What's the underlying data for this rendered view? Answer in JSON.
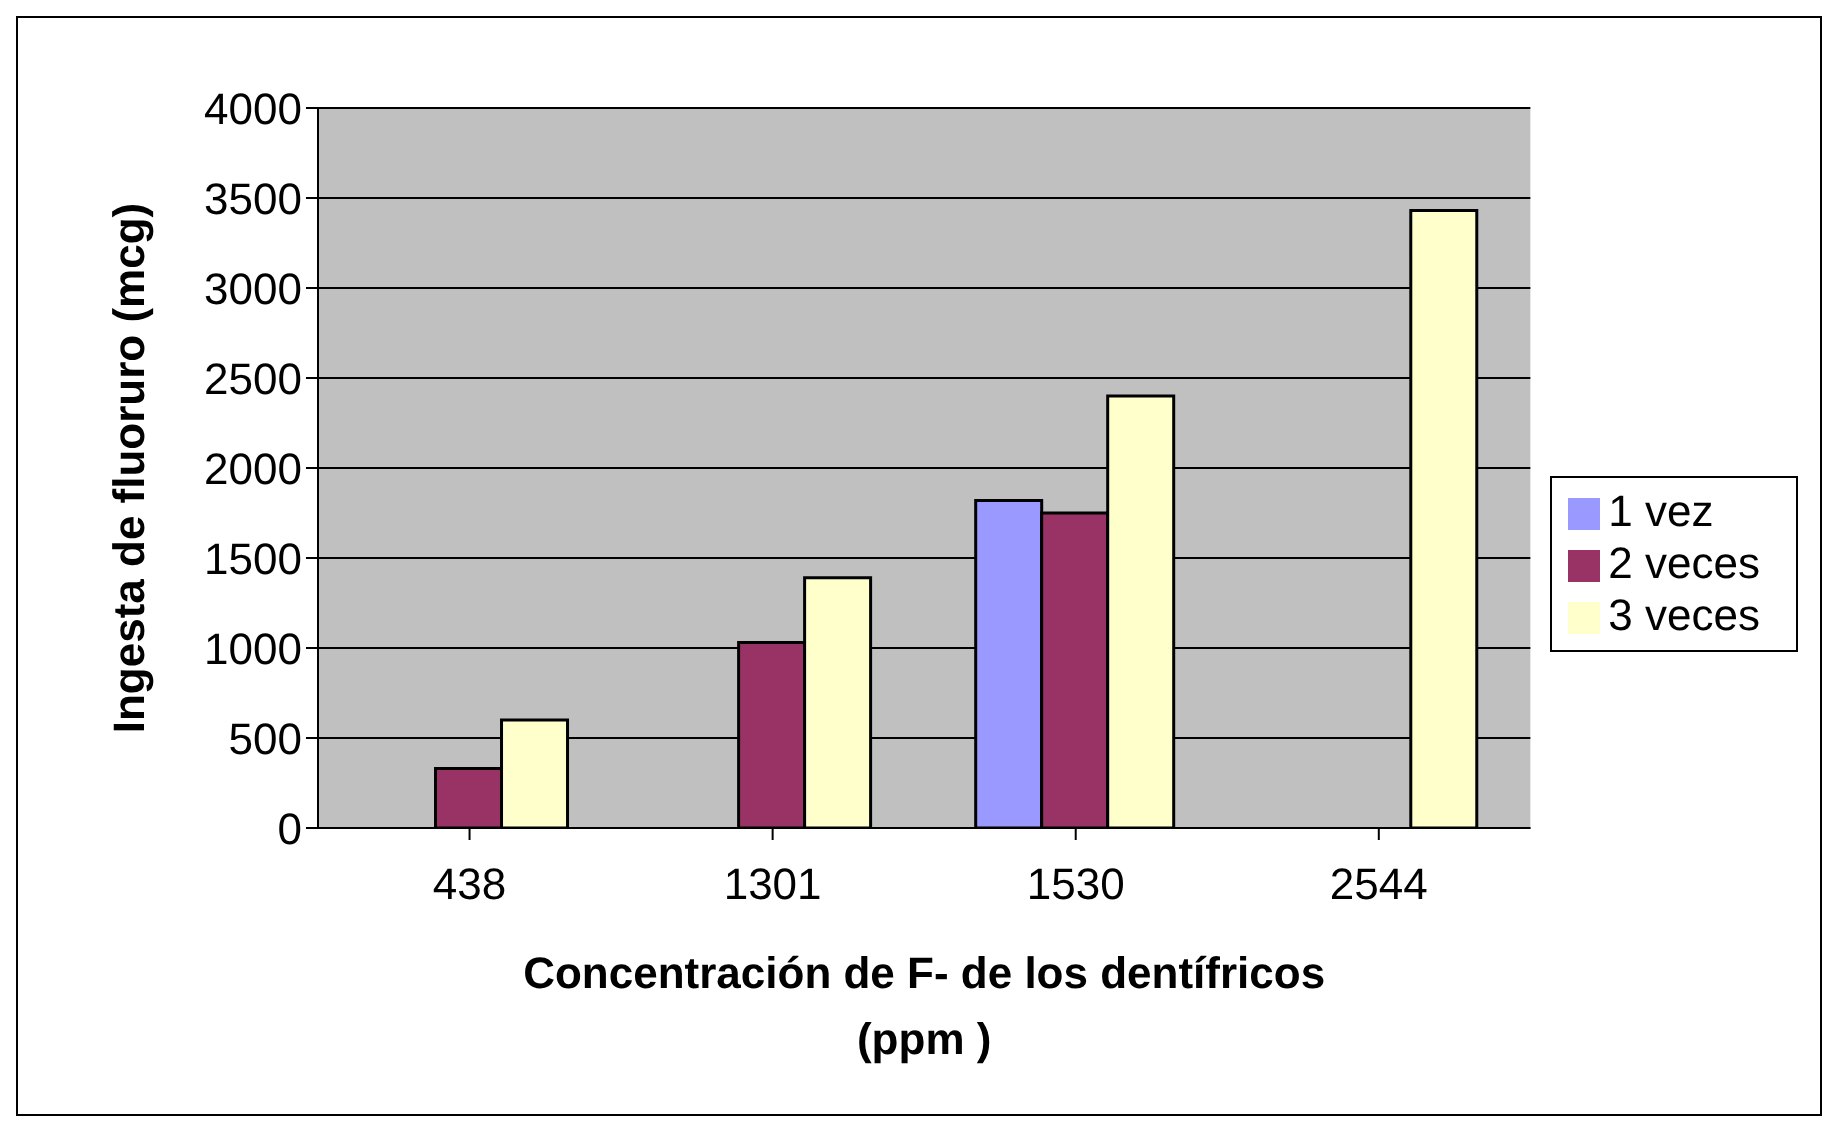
{
  "chart_data": {
    "type": "bar",
    "xlabel": "Concentración de F- de los dentífricos (ppm )",
    "ylabel": "Ingesta de fluoruro (mcg)",
    "categories": [
      "438",
      "1301",
      "1530",
      "2544"
    ],
    "series": [
      {
        "name": "1 vez",
        "color": "#9999ff",
        "values": [
          null,
          null,
          1820,
          null
        ]
      },
      {
        "name": "2 veces",
        "color": "#993366",
        "values": [
          330,
          1030,
          1750,
          null
        ]
      },
      {
        "name": "3 veces",
        "color": "#ffffcc",
        "values": [
          600,
          1390,
          2400,
          3430
        ]
      }
    ],
    "ylim": [
      0,
      4000
    ],
    "yticks": [
      0,
      500,
      1000,
      1500,
      2000,
      2500,
      3000,
      3500,
      4000
    ],
    "grid": "y",
    "legend": "right"
  }
}
